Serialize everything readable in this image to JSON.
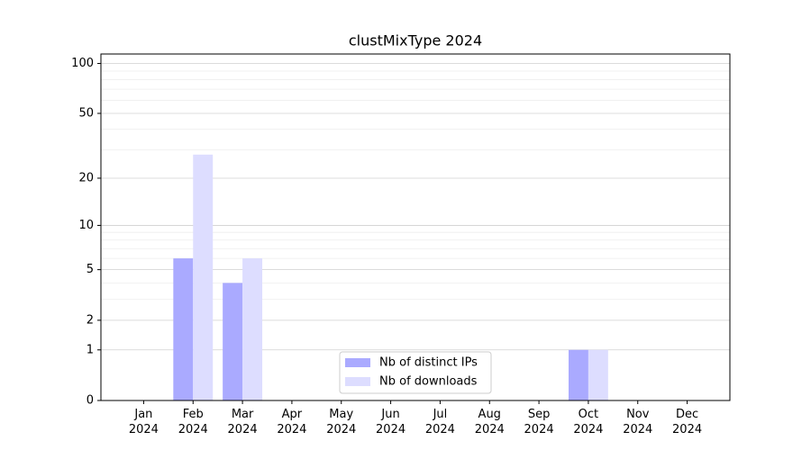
{
  "chart_data": {
    "type": "bar",
    "title": "clustMixType 2024",
    "categories": [
      "Jan\n2024",
      "Feb\n2024",
      "Mar\n2024",
      "Apr\n2024",
      "May\n2024",
      "Jun\n2024",
      "Jul\n2024",
      "Aug\n2024",
      "Sep\n2024",
      "Oct\n2024",
      "Nov\n2024",
      "Dec\n2024"
    ],
    "series": [
      {
        "name": "Nb of distinct IPs",
        "color": "#aaaaff",
        "values": [
          0,
          6,
          4,
          0,
          0,
          0,
          0,
          0,
          0,
          1,
          0,
          0
        ]
      },
      {
        "name": "Nb of downloads",
        "color": "#ddddff",
        "values": [
          0,
          28,
          6,
          0,
          0,
          0,
          0,
          0,
          0,
          1,
          0,
          0
        ]
      }
    ],
    "yscale": "log1p",
    "ylim": [
      0,
      114
    ],
    "yticks": [
      0,
      1,
      2,
      5,
      10,
      20,
      50,
      100
    ],
    "minor_yticks": [
      3,
      4,
      6,
      7,
      8,
      9,
      30,
      40,
      60,
      70,
      80,
      90
    ],
    "grid": true,
    "legend": "lower center"
  }
}
